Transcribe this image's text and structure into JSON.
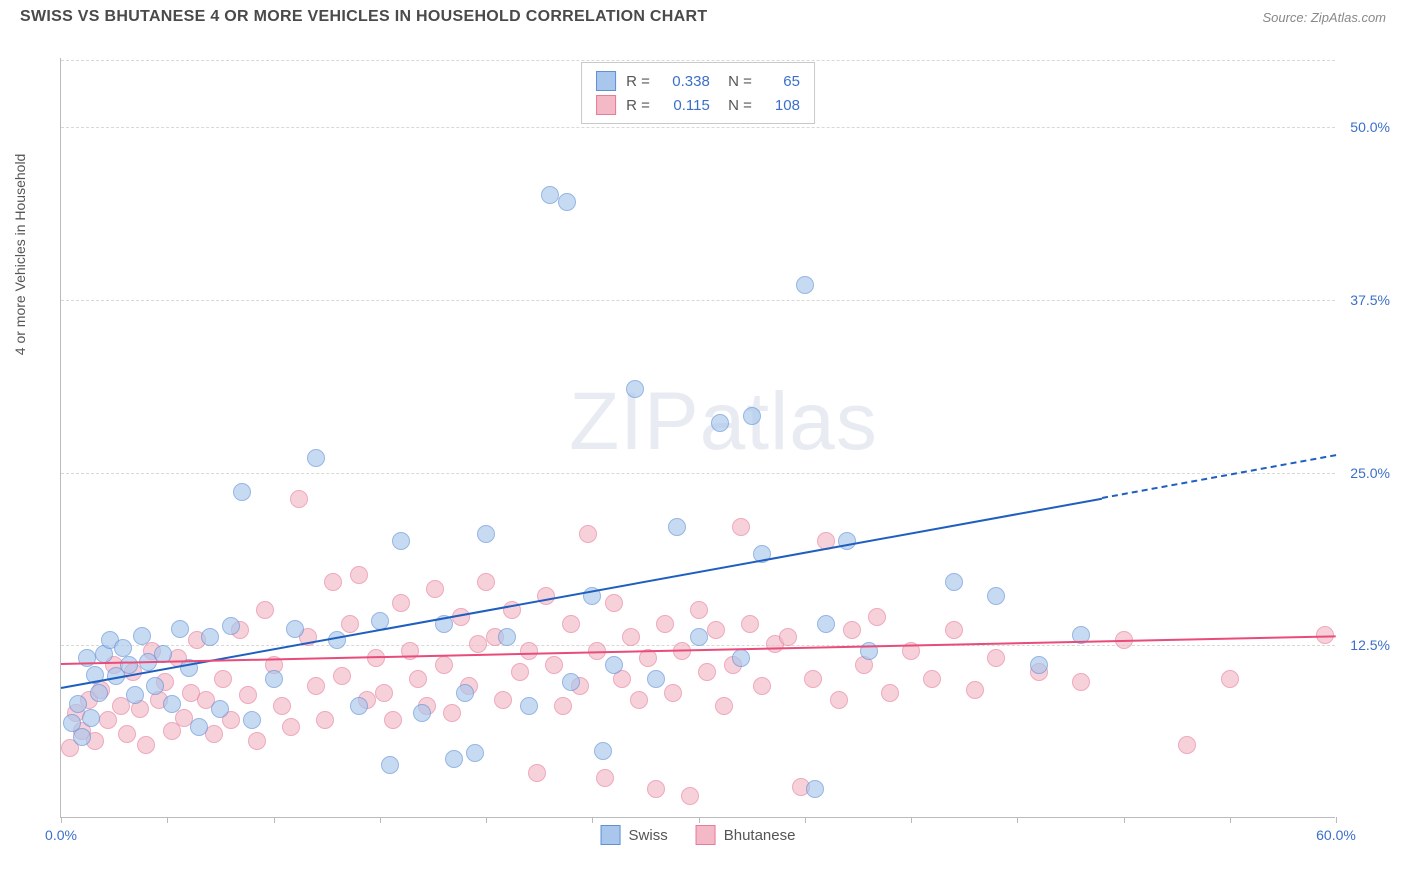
{
  "header": {
    "title": "SWISS VS BHUTANESE 4 OR MORE VEHICLES IN HOUSEHOLD CORRELATION CHART",
    "source": "Source: ZipAtlas.com"
  },
  "chart": {
    "type": "scatter",
    "y_axis_label": "4 or more Vehicles in Household",
    "watermark": "ZIPatlas",
    "xlim": [
      0,
      60
    ],
    "ylim": [
      0,
      55
    ],
    "x_ticks": [
      0,
      5,
      10,
      15,
      20,
      25,
      30,
      35,
      40,
      45,
      50,
      55,
      60
    ],
    "x_tick_labels": {
      "0": "0.0%",
      "60": "60.0%"
    },
    "y_ticks": [
      12.5,
      25.0,
      37.5,
      50.0
    ],
    "y_tick_labels": [
      "12.5%",
      "25.0%",
      "37.5%",
      "50.0%"
    ],
    "grid_color": "#d8d8d8",
    "background_color": "#ffffff",
    "axis_color": "#bbbbbb",
    "tick_label_color": "#3b6fc9",
    "series": [
      {
        "name": "Swiss",
        "R": "0.338",
        "N": "65",
        "fill": "#a9c7ec",
        "stroke": "#5f8fd6",
        "trend_color": "#1e5fbf",
        "trend_start": [
          0,
          9.5
        ],
        "trend_end": [
          49,
          23.2
        ],
        "trend_dash_end": [
          60,
          26.3
        ],
        "points": [
          [
            0.5,
            6.8
          ],
          [
            0.8,
            8.2
          ],
          [
            1.0,
            5.8
          ],
          [
            1.2,
            11.5
          ],
          [
            1.4,
            7.2
          ],
          [
            1.6,
            10.3
          ],
          [
            1.8,
            9.0
          ],
          [
            2.0,
            11.8
          ],
          [
            2.3,
            12.8
          ],
          [
            2.6,
            10.2
          ],
          [
            2.9,
            12.2
          ],
          [
            3.2,
            11.0
          ],
          [
            3.5,
            8.8
          ],
          [
            3.8,
            13.1
          ],
          [
            4.1,
            11.2
          ],
          [
            4.4,
            9.5
          ],
          [
            4.8,
            11.8
          ],
          [
            5.2,
            8.2
          ],
          [
            5.6,
            13.6
          ],
          [
            6.0,
            10.8
          ],
          [
            6.5,
            6.5
          ],
          [
            7.0,
            13.0
          ],
          [
            7.5,
            7.8
          ],
          [
            8.0,
            13.8
          ],
          [
            8.5,
            23.5
          ],
          [
            9.0,
            7.0
          ],
          [
            10.0,
            10.0
          ],
          [
            11.0,
            13.6
          ],
          [
            12.0,
            26.0
          ],
          [
            13.0,
            12.8
          ],
          [
            14.0,
            8.0
          ],
          [
            15.0,
            14.2
          ],
          [
            15.5,
            3.8
          ],
          [
            16.0,
            20.0
          ],
          [
            17.0,
            7.5
          ],
          [
            18.0,
            14.0
          ],
          [
            18.5,
            4.2
          ],
          [
            19.0,
            9.0
          ],
          [
            19.5,
            4.6
          ],
          [
            20.0,
            20.5
          ],
          [
            21.0,
            13.0
          ],
          [
            22.0,
            8.0
          ],
          [
            23.0,
            45.0
          ],
          [
            23.8,
            44.5
          ],
          [
            24.0,
            9.8
          ],
          [
            25.0,
            16.0
          ],
          [
            25.5,
            4.8
          ],
          [
            26.0,
            11.0
          ],
          [
            27.0,
            31.0
          ],
          [
            28.0,
            10.0
          ],
          [
            29.0,
            21.0
          ],
          [
            30.0,
            13.0
          ],
          [
            31.0,
            28.5
          ],
          [
            32.0,
            11.5
          ],
          [
            32.5,
            29.0
          ],
          [
            33.0,
            19.0
          ],
          [
            35.0,
            38.5
          ],
          [
            35.5,
            2.0
          ],
          [
            36.0,
            14.0
          ],
          [
            37.0,
            20.0
          ],
          [
            38.0,
            12.0
          ],
          [
            42.0,
            17.0
          ],
          [
            44.0,
            16.0
          ],
          [
            46.0,
            11.0
          ],
          [
            48.0,
            13.2
          ]
        ]
      },
      {
        "name": "Bhutanese",
        "R": "0.115",
        "N": "108",
        "fill": "#f3b9c7",
        "stroke": "#e77b9a",
        "trend_color": "#e94b7a",
        "trend_start": [
          0,
          11.2
        ],
        "trend_end": [
          60,
          13.2
        ],
        "points": [
          [
            0.4,
            5.0
          ],
          [
            0.7,
            7.5
          ],
          [
            1.0,
            6.2
          ],
          [
            1.3,
            8.5
          ],
          [
            1.6,
            5.5
          ],
          [
            1.9,
            9.2
          ],
          [
            2.2,
            7.0
          ],
          [
            2.5,
            11.0
          ],
          [
            2.8,
            8.0
          ],
          [
            3.1,
            6.0
          ],
          [
            3.4,
            10.5
          ],
          [
            3.7,
            7.8
          ],
          [
            4.0,
            5.2
          ],
          [
            4.3,
            12.0
          ],
          [
            4.6,
            8.5
          ],
          [
            4.9,
            9.8
          ],
          [
            5.2,
            6.2
          ],
          [
            5.5,
            11.5
          ],
          [
            5.8,
            7.2
          ],
          [
            6.1,
            9.0
          ],
          [
            6.4,
            12.8
          ],
          [
            6.8,
            8.5
          ],
          [
            7.2,
            6.0
          ],
          [
            7.6,
            10.0
          ],
          [
            8.0,
            7.0
          ],
          [
            8.4,
            13.5
          ],
          [
            8.8,
            8.8
          ],
          [
            9.2,
            5.5
          ],
          [
            9.6,
            15.0
          ],
          [
            10.0,
            11.0
          ],
          [
            10.4,
            8.0
          ],
          [
            10.8,
            6.5
          ],
          [
            11.2,
            23.0
          ],
          [
            11.6,
            13.0
          ],
          [
            12.0,
            9.5
          ],
          [
            12.4,
            7.0
          ],
          [
            12.8,
            17.0
          ],
          [
            13.2,
            10.2
          ],
          [
            13.6,
            14.0
          ],
          [
            14.0,
            17.5
          ],
          [
            14.4,
            8.5
          ],
          [
            14.8,
            11.5
          ],
          [
            15.2,
            9.0
          ],
          [
            15.6,
            7.0
          ],
          [
            16.0,
            15.5
          ],
          [
            16.4,
            12.0
          ],
          [
            16.8,
            10.0
          ],
          [
            17.2,
            8.0
          ],
          [
            17.6,
            16.5
          ],
          [
            18.0,
            11.0
          ],
          [
            18.4,
            7.5
          ],
          [
            18.8,
            14.5
          ],
          [
            19.2,
            9.5
          ],
          [
            19.6,
            12.5
          ],
          [
            20.0,
            17.0
          ],
          [
            20.4,
            13.0
          ],
          [
            20.8,
            8.5
          ],
          [
            21.2,
            15.0
          ],
          [
            21.6,
            10.5
          ],
          [
            22.0,
            12.0
          ],
          [
            22.4,
            3.2
          ],
          [
            22.8,
            16.0
          ],
          [
            23.2,
            11.0
          ],
          [
            23.6,
            8.0
          ],
          [
            24.0,
            14.0
          ],
          [
            24.4,
            9.5
          ],
          [
            24.8,
            20.5
          ],
          [
            25.2,
            12.0
          ],
          [
            25.6,
            2.8
          ],
          [
            26.0,
            15.5
          ],
          [
            26.4,
            10.0
          ],
          [
            26.8,
            13.0
          ],
          [
            27.2,
            8.5
          ],
          [
            27.6,
            11.5
          ],
          [
            28.0,
            2.0
          ],
          [
            28.4,
            14.0
          ],
          [
            28.8,
            9.0
          ],
          [
            29.2,
            12.0
          ],
          [
            29.6,
            1.5
          ],
          [
            30.0,
            15.0
          ],
          [
            30.4,
            10.5
          ],
          [
            30.8,
            13.5
          ],
          [
            31.2,
            8.0
          ],
          [
            31.6,
            11.0
          ],
          [
            32.0,
            21.0
          ],
          [
            32.4,
            14.0
          ],
          [
            33.0,
            9.5
          ],
          [
            33.6,
            12.5
          ],
          [
            34.2,
            13.0
          ],
          [
            34.8,
            2.2
          ],
          [
            35.4,
            10.0
          ],
          [
            36.0,
            20.0
          ],
          [
            36.6,
            8.5
          ],
          [
            37.2,
            13.5
          ],
          [
            37.8,
            11.0
          ],
          [
            38.4,
            14.5
          ],
          [
            39.0,
            9.0
          ],
          [
            40.0,
            12.0
          ],
          [
            41.0,
            10.0
          ],
          [
            42.0,
            13.5
          ],
          [
            43.0,
            9.2
          ],
          [
            44.0,
            11.5
          ],
          [
            46.0,
            10.5
          ],
          [
            48.0,
            9.8
          ],
          [
            50.0,
            12.8
          ],
          [
            53.0,
            5.2
          ],
          [
            55.0,
            10.0
          ],
          [
            59.5,
            13.2
          ]
        ]
      }
    ],
    "bottom_legend": [
      {
        "label": "Swiss",
        "fill": "#a9c7ec",
        "stroke": "#5f8fd6"
      },
      {
        "label": "Bhutanese",
        "fill": "#f3b9c7",
        "stroke": "#e77b9a"
      }
    ]
  }
}
